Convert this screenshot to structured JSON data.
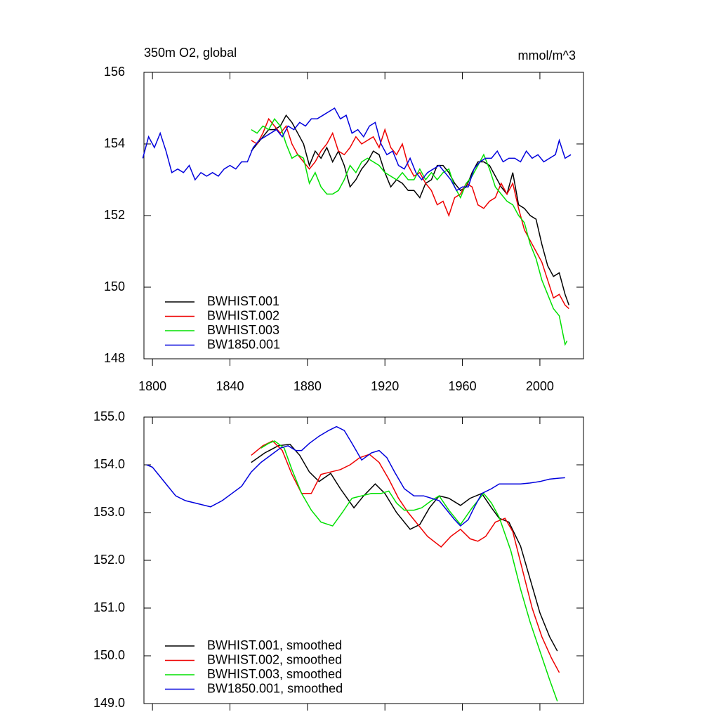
{
  "chart_data": [
    {
      "type": "line",
      "title": "350m O2, global",
      "units": "mmol/m^3",
      "xlim": [
        1795.6,
        2022.5
      ],
      "xticks": [
        1800,
        1840,
        1880,
        1920,
        1960,
        2000
      ],
      "show_xtick_labels": true,
      "ylim": [
        148,
        156
      ],
      "yticks": [
        148,
        150,
        152,
        154,
        156
      ],
      "legend": "lower left",
      "series": [
        {
          "name": "BWHIST.001",
          "color": "#000000",
          "x": [
            1851,
            1854,
            1857,
            1860,
            1863,
            1866,
            1869,
            1872,
            1875,
            1878,
            1881,
            1884,
            1887,
            1890,
            1893,
            1896,
            1899,
            1902,
            1905,
            1908,
            1911,
            1914,
            1917,
            1920,
            1923,
            1926,
            1929,
            1932,
            1935,
            1938,
            1941,
            1944,
            1947,
            1950,
            1953,
            1956,
            1959,
            1962,
            1965,
            1968,
            1971,
            1974,
            1977,
            1980,
            1983,
            1986,
            1989,
            1992,
            1995,
            1998,
            2001,
            2004,
            2007,
            2010,
            2013,
            2015
          ],
          "values": [
            153.8,
            154.0,
            154.2,
            154.4,
            154.4,
            154.5,
            154.8,
            154.6,
            154.3,
            154.0,
            153.4,
            153.8,
            153.6,
            153.9,
            153.5,
            153.8,
            153.4,
            152.8,
            153.0,
            153.3,
            153.5,
            153.8,
            153.7,
            153.2,
            152.8,
            153.0,
            152.9,
            152.7,
            152.7,
            152.5,
            152.9,
            153.0,
            153.4,
            153.4,
            153.2,
            152.9,
            152.7,
            152.8,
            153.2,
            153.5,
            153.5,
            153.4,
            153.1,
            152.8,
            152.6,
            153.2,
            152.3,
            152.2,
            152.0,
            151.9,
            151.2,
            150.6,
            150.3,
            150.4,
            149.8,
            149.5
          ]
        },
        {
          "name": "BWHIST.002",
          "color": "#ee0000",
          "x": [
            1851,
            1854,
            1857,
            1860,
            1863,
            1866,
            1869,
            1872,
            1875,
            1878,
            1881,
            1884,
            1887,
            1890,
            1893,
            1896,
            1899,
            1902,
            1905,
            1908,
            1911,
            1914,
            1917,
            1920,
            1923,
            1926,
            1929,
            1932,
            1935,
            1938,
            1941,
            1944,
            1947,
            1950,
            1953,
            1956,
            1959,
            1962,
            1965,
            1968,
            1971,
            1974,
            1977,
            1980,
            1983,
            1986,
            1989,
            1992,
            1995,
            1998,
            2001,
            2004,
            2007,
            2010,
            2013,
            2015
          ],
          "values": [
            154.1,
            154.0,
            154.3,
            154.7,
            154.5,
            154.3,
            154.5,
            154.0,
            153.7,
            153.5,
            153.3,
            153.5,
            153.8,
            154.0,
            154.3,
            153.8,
            153.7,
            153.9,
            154.2,
            154.0,
            154.1,
            154.2,
            153.9,
            154.4,
            153.9,
            153.7,
            154.0,
            153.4,
            153.1,
            153.2,
            152.9,
            152.7,
            152.3,
            152.4,
            152.0,
            152.5,
            152.6,
            152.9,
            152.8,
            152.3,
            152.2,
            152.4,
            152.5,
            152.9,
            152.6,
            152.9,
            152.2,
            151.6,
            151.3,
            151.0,
            150.7,
            150.2,
            149.7,
            149.8,
            149.5,
            149.4
          ]
        },
        {
          "name": "BWHIST.003",
          "color": "#00e000",
          "x": [
            1851,
            1854,
            1857,
            1860,
            1863,
            1866,
            1869,
            1872,
            1875,
            1878,
            1881,
            1884,
            1887,
            1890,
            1893,
            1896,
            1899,
            1902,
            1905,
            1908,
            1911,
            1914,
            1917,
            1920,
            1923,
            1926,
            1929,
            1932,
            1935,
            1938,
            1941,
            1944,
            1947,
            1950,
            1953,
            1956,
            1959,
            1962,
            1965,
            1968,
            1971,
            1974,
            1977,
            1980,
            1983,
            1986,
            1989,
            1992,
            1995,
            1998,
            2001,
            2004,
            2007,
            2010,
            2013,
            2014
          ],
          "values": [
            154.4,
            154.3,
            154.5,
            154.4,
            154.7,
            154.5,
            154.0,
            153.6,
            153.7,
            153.6,
            152.9,
            153.2,
            152.8,
            152.6,
            152.6,
            152.7,
            153.0,
            153.4,
            153.2,
            153.5,
            153.6,
            153.5,
            153.4,
            153.2,
            153.1,
            153.0,
            153.2,
            153.0,
            153.0,
            153.3,
            153.0,
            153.2,
            153.0,
            153.2,
            153.3,
            152.8,
            152.5,
            152.9,
            153.1,
            153.4,
            153.7,
            153.3,
            152.8,
            152.6,
            152.4,
            152.3,
            152.0,
            151.8,
            151.2,
            150.8,
            150.2,
            149.8,
            149.4,
            149.2,
            148.4,
            148.5
          ]
        },
        {
          "name": "BW1850.001",
          "color": "#0000dd",
          "x": [
            1795,
            1798,
            1801,
            1804,
            1807,
            1810,
            1813,
            1816,
            1819,
            1822,
            1825,
            1828,
            1831,
            1834,
            1837,
            1840,
            1843,
            1846,
            1849,
            1852,
            1855,
            1858,
            1861,
            1864,
            1867,
            1870,
            1873,
            1876,
            1879,
            1882,
            1885,
            1888,
            1891,
            1894,
            1897,
            1900,
            1903,
            1906,
            1909,
            1912,
            1915,
            1918,
            1921,
            1924,
            1927,
            1930,
            1933,
            1936,
            1939,
            1942,
            1945,
            1948,
            1951,
            1954,
            1957,
            1960,
            1963,
            1966,
            1969,
            1972,
            1975,
            1978,
            1981,
            1984,
            1987,
            1990,
            1993,
            1996,
            1999,
            2002,
            2005,
            2008,
            2010,
            2013,
            2016
          ],
          "values": [
            153.6,
            154.2,
            153.9,
            154.3,
            153.8,
            153.2,
            153.3,
            153.2,
            153.4,
            153.0,
            153.2,
            153.1,
            153.2,
            153.1,
            153.3,
            153.4,
            153.3,
            153.5,
            153.5,
            153.9,
            154.1,
            154.2,
            154.3,
            154.4,
            154.2,
            154.5,
            154.4,
            154.6,
            154.5,
            154.7,
            154.7,
            154.8,
            154.9,
            155.0,
            154.7,
            154.8,
            154.3,
            154.4,
            154.2,
            154.5,
            154.6,
            154.0,
            153.7,
            153.8,
            153.4,
            153.3,
            153.6,
            153.2,
            153.0,
            153.2,
            153.3,
            153.4,
            153.2,
            153.0,
            152.7,
            152.8,
            152.8,
            153.3,
            153.5,
            153.6,
            153.6,
            153.8,
            153.5,
            153.6,
            153.6,
            153.5,
            153.8,
            153.6,
            153.7,
            153.5,
            153.6,
            153.7,
            154.1,
            153.6,
            153.7
          ]
        }
      ]
    },
    {
      "type": "line",
      "xlim": [
        1795.6,
        2022.5
      ],
      "xticks": [
        1800,
        1840,
        1880,
        1920,
        1960,
        2000
      ],
      "show_xtick_labels": false,
      "ylim": [
        149,
        155
      ],
      "yticks": [
        {
          "value": 149,
          "label": "149.0"
        },
        {
          "value": 150,
          "label": "150.0"
        },
        {
          "value": 151,
          "label": "151.0"
        },
        {
          "value": 152,
          "label": "152.0"
        },
        {
          "value": 153,
          "label": "153.0"
        },
        {
          "value": 154,
          "label": "154.0"
        },
        {
          "value": 155,
          "label": "155.0"
        }
      ],
      "legend": "lower left",
      "series": [
        {
          "name": "BWHIST.001, smoothed",
          "color": "#000000",
          "x": [
            1851,
            1858,
            1865,
            1871,
            1876,
            1881,
            1886,
            1892,
            1897,
            1904,
            1909,
            1915,
            1920,
            1926,
            1933,
            1938,
            1943,
            1948,
            1953,
            1959,
            1964,
            1970,
            1975,
            1979,
            1984,
            1990,
            1995,
            2000,
            2005,
            2009
          ],
          "values": [
            154.05,
            154.25,
            154.4,
            154.43,
            154.2,
            153.85,
            153.65,
            153.82,
            153.5,
            153.1,
            153.35,
            153.6,
            153.4,
            153.0,
            152.65,
            152.75,
            153.1,
            153.35,
            153.3,
            153.15,
            153.3,
            153.4,
            153.1,
            152.88,
            152.8,
            152.3,
            151.6,
            150.9,
            150.4,
            150.1
          ]
        },
        {
          "name": "BWHIST.002, smoothed",
          "color": "#ee0000",
          "x": [
            1851,
            1857,
            1862,
            1867,
            1872,
            1877,
            1882,
            1887,
            1892,
            1897,
            1902,
            1907,
            1912,
            1917,
            1922,
            1927,
            1932,
            1937,
            1942,
            1949,
            1954,
            1959,
            1964,
            1968,
            1972,
            1977,
            1982,
            1986,
            1991,
            1996,
            2001,
            2006,
            2010
          ],
          "values": [
            154.2,
            154.4,
            154.5,
            154.3,
            153.8,
            153.4,
            153.4,
            153.8,
            153.85,
            153.9,
            154.0,
            154.15,
            154.22,
            154.05,
            153.7,
            153.3,
            153.0,
            152.75,
            152.5,
            152.28,
            152.5,
            152.65,
            152.45,
            152.4,
            152.5,
            152.8,
            152.88,
            152.6,
            151.8,
            151.0,
            150.4,
            149.95,
            149.65
          ]
        },
        {
          "name": "BWHIST.003, smoothed",
          "color": "#00e000",
          "x": [
            1856,
            1860,
            1863,
            1868,
            1872,
            1877,
            1882,
            1887,
            1893,
            1898,
            1903,
            1908,
            1913,
            1918,
            1922,
            1926,
            1930,
            1935,
            1939,
            1944,
            1948,
            1953,
            1959,
            1965,
            1971,
            1975,
            1979,
            1985,
            1990,
            1995,
            2000,
            2005,
            2009
          ],
          "values": [
            154.35,
            154.45,
            154.5,
            154.35,
            153.9,
            153.4,
            153.05,
            152.8,
            152.72,
            153.0,
            153.3,
            153.35,
            153.4,
            153.4,
            153.45,
            153.2,
            153.05,
            153.05,
            153.1,
            153.25,
            153.35,
            153.05,
            152.75,
            153.1,
            153.4,
            153.2,
            152.9,
            152.2,
            151.4,
            150.7,
            150.1,
            149.5,
            149.05
          ]
        },
        {
          "name": "BW1850.001, smoothed",
          "color": "#0000dd",
          "x": [
            1797,
            1800,
            1804,
            1808,
            1812,
            1817,
            1824,
            1830,
            1836,
            1841,
            1846,
            1851,
            1856,
            1861,
            1866,
            1870,
            1874,
            1877,
            1881,
            1886,
            1891,
            1895,
            1899,
            1903,
            1908,
            1913,
            1917,
            1921,
            1925,
            1930,
            1935,
            1940,
            1944,
            1948,
            1952,
            1956,
            1959,
            1963,
            1966,
            1970,
            1975,
            1979,
            1985,
            1990,
            1995,
            2000,
            2005,
            2010,
            2013
          ],
          "values": [
            154.0,
            153.95,
            153.75,
            153.55,
            153.35,
            153.25,
            153.18,
            153.12,
            153.25,
            153.4,
            153.55,
            153.85,
            154.05,
            154.2,
            154.35,
            154.4,
            154.3,
            154.3,
            154.45,
            154.6,
            154.72,
            154.8,
            154.72,
            154.45,
            154.1,
            154.25,
            154.3,
            154.15,
            153.85,
            153.5,
            153.35,
            153.35,
            153.3,
            153.25,
            153.05,
            152.85,
            152.72,
            152.85,
            153.1,
            153.4,
            153.5,
            153.6,
            153.6,
            153.6,
            153.62,
            153.65,
            153.7,
            153.72,
            153.73
          ]
        }
      ]
    }
  ]
}
